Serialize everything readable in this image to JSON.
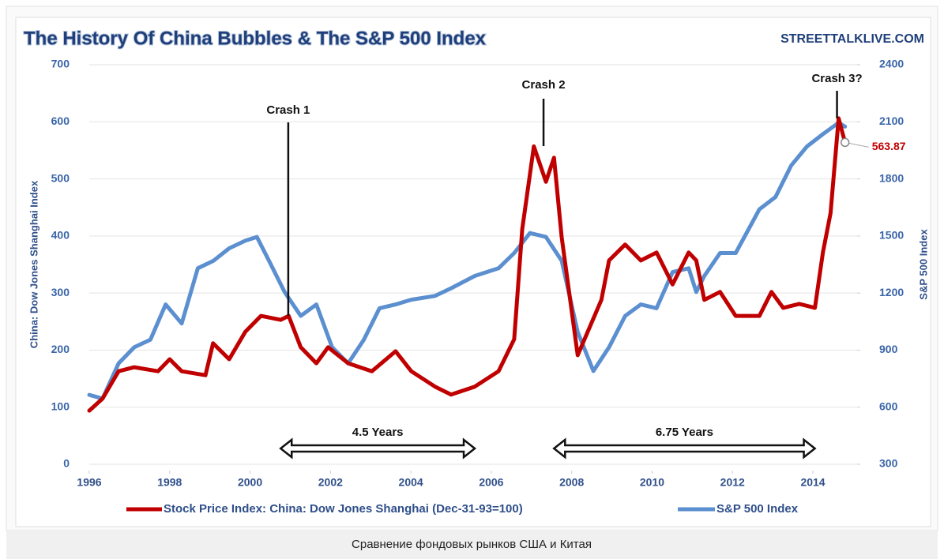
{
  "chart_data": {
    "type": "line",
    "title": "The History Of China Bubbles & The S&P 500 Index",
    "watermark": "STREETTALKLIVE.COM",
    "ylabel": "China: Dow Jones Shanghai Index",
    "y2label": "S&P 500 Index",
    "xlim": [
      1996,
      2015.1
    ],
    "xticks": [
      1996,
      1998,
      2000,
      2002,
      2004,
      2006,
      2008,
      2010,
      2012,
      2014
    ],
    "ylim": [
      0,
      700
    ],
    "yticks": [
      0,
      100,
      200,
      300,
      400,
      500,
      600,
      700
    ],
    "y2lim": [
      300,
      2400
    ],
    "y2ticks": [
      300,
      600,
      900,
      1200,
      1500,
      1800,
      2100,
      2400
    ],
    "grid": true,
    "series": [
      {
        "name": "S&P 500 Index",
        "color": "#5b8fd0",
        "axis": "y2",
        "x": [
          1996.0,
          1996.33,
          1996.73,
          1997.12,
          1997.52,
          1997.9,
          1998.3,
          1998.7,
          1999.09,
          1999.48,
          1999.88,
          2000.17,
          2000.47,
          2000.86,
          2001.26,
          2001.65,
          2002.04,
          2002.44,
          2002.83,
          2003.22,
          2003.62,
          2004.01,
          2004.6,
          2005.0,
          2005.59,
          2006.18,
          2006.57,
          2006.96,
          2007.36,
          2007.75,
          2008.15,
          2008.54,
          2008.93,
          2009.33,
          2009.72,
          2010.11,
          2010.51,
          2010.91,
          2011.1,
          2011.3,
          2011.69,
          2012.08,
          2012.67,
          2013.07,
          2013.46,
          2013.85,
          2014.25,
          2014.64,
          2014.8
        ],
        "values": [
          665,
          645,
          830,
          915,
          955,
          1140,
          1040,
          1330,
          1370,
          1435,
          1475,
          1495,
          1370,
          1205,
          1080,
          1140,
          915,
          830,
          955,
          1120,
          1140,
          1165,
          1185,
          1225,
          1290,
          1330,
          1410,
          1515,
          1495,
          1370,
          995,
          790,
          915,
          1080,
          1140,
          1120,
          1310,
          1330,
          1205,
          1290,
          1410,
          1410,
          1640,
          1705,
          1870,
          1970,
          2035,
          2095,
          2075
        ]
      },
      {
        "name": "Stock Price Index: China: Dow Jones Shanghai (Dec-31-93=100)",
        "color": "#c00000",
        "axis": "y",
        "x": [
          1996.0,
          1996.33,
          1996.73,
          1997.12,
          1997.71,
          1998.0,
          1998.3,
          1998.89,
          1999.08,
          1999.48,
          1999.88,
          2000.27,
          2000.76,
          2000.96,
          2001.26,
          2001.65,
          2001.94,
          2002.44,
          2003.03,
          2003.62,
          2004.01,
          2004.6,
          2005.0,
          2005.59,
          2006.18,
          2006.57,
          2006.77,
          2007.06,
          2007.36,
          2007.56,
          2007.75,
          2008.15,
          2008.74,
          2008.93,
          2009.33,
          2009.72,
          2010.11,
          2010.51,
          2010.91,
          2011.1,
          2011.3,
          2011.69,
          2012.08,
          2012.67,
          2012.97,
          2013.26,
          2013.66,
          2014.05,
          2014.25,
          2014.44,
          2014.64,
          2014.8
        ],
        "values": [
          94,
          115,
          163,
          170,
          163,
          184,
          163,
          156,
          212,
          184,
          232,
          260,
          253,
          260,
          205,
          177,
          205,
          177,
          163,
          198,
          163,
          136,
          122,
          136,
          163,
          219,
          412,
          557,
          495,
          537,
          398,
          191,
          288,
          357,
          385,
          357,
          371,
          315,
          371,
          357,
          288,
          302,
          260,
          260,
          302,
          274,
          281,
          274,
          371,
          440,
          606,
          563.87
        ]
      }
    ],
    "annotations": [
      {
        "text": "Crash 1",
        "x": 2000.95
      },
      {
        "text": "Crash 2",
        "x": 2007.3
      },
      {
        "text": "Crash 3?",
        "x": 2014.6
      }
    ],
    "spans": [
      {
        "text": "4.5 Years",
        "from": 2000.76,
        "to": 2005.59
      },
      {
        "text": "6.75 Years",
        "from": 2007.56,
        "to": 2014.05
      }
    ]
  },
  "caption": "Сравнение фондовых рынков США и Китая"
}
